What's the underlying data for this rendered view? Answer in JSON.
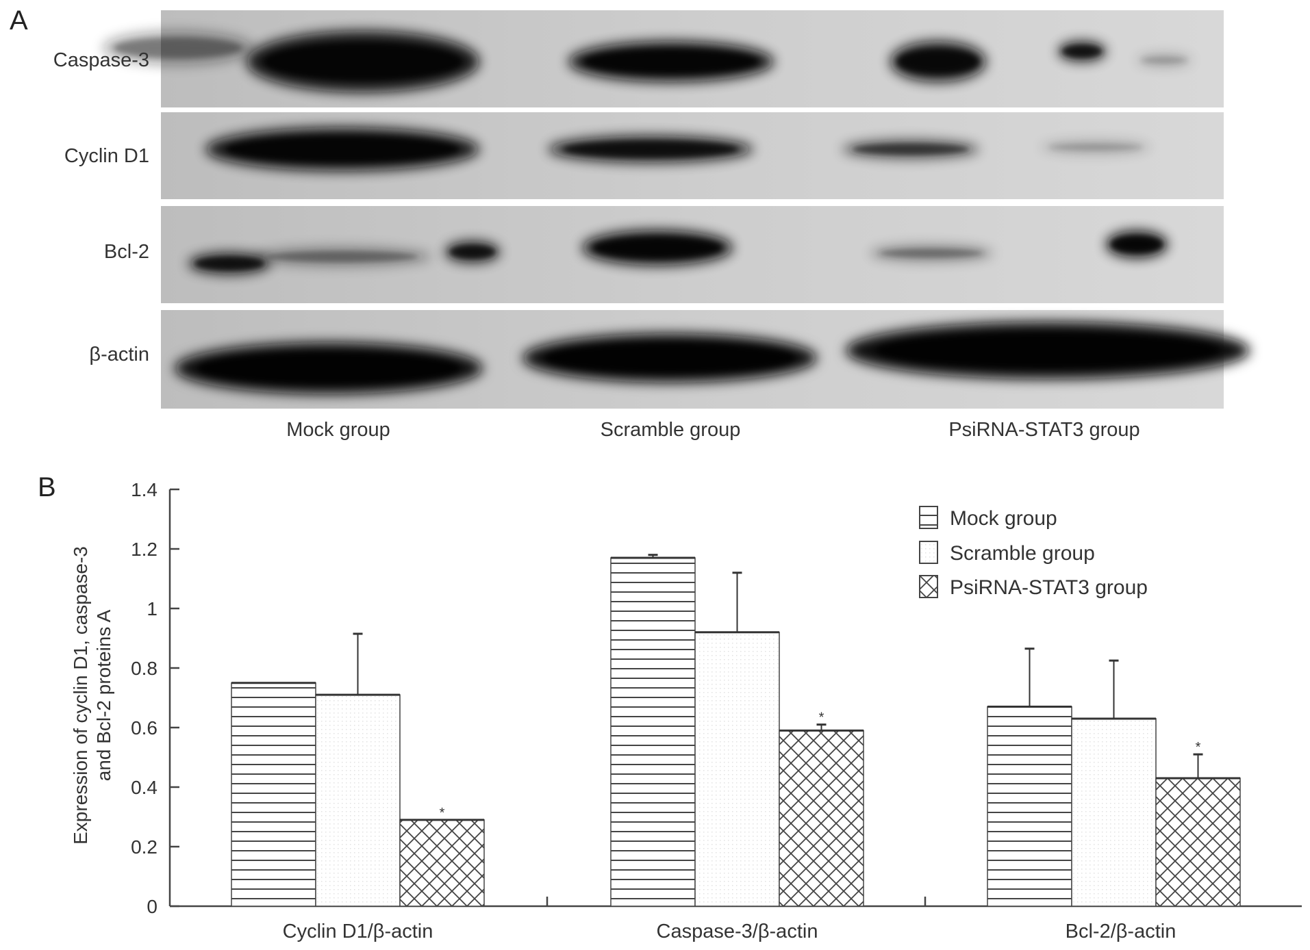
{
  "panel_a": {
    "letter": "A",
    "rows": [
      "Caspase-3",
      "Cyclin D1",
      "Bcl-2",
      "β-actin"
    ],
    "groups": [
      "Mock group",
      "Scramble group",
      "PsiRNA-STAT3 group"
    ]
  },
  "panel_b": {
    "letter": "B"
  },
  "chart_data": {
    "type": "bar",
    "categories": [
      "Cyclin D1/β-actin",
      "Caspase-3/β-actin",
      "Bcl-2/β-actin"
    ],
    "ylabel": [
      "Expression of cyclin D1, caspase-3",
      "and Bcl-2 proteins A"
    ],
    "ylim": [
      0,
      1.4
    ],
    "yticks": [
      "0",
      "0.2",
      "0.4",
      "0.6",
      "0.8",
      "1",
      "1.2",
      "1.4"
    ],
    "legend_position": "top-right",
    "series": [
      {
        "name": "Mock group",
        "pattern": "horizontal-lines",
        "values": [
          0.75,
          1.17,
          0.67
        ],
        "error_upper": [
          0.75,
          1.18,
          0.865
        ],
        "significant": [
          false,
          false,
          false
        ]
      },
      {
        "name": "Scramble group",
        "pattern": "light-dots",
        "values": [
          0.71,
          0.92,
          0.63
        ],
        "error_upper": [
          0.915,
          1.12,
          0.825
        ],
        "significant": [
          false,
          false,
          false
        ]
      },
      {
        "name": "PsiRNA-STAT3 group",
        "pattern": "crosshatch",
        "values": [
          0.29,
          0.59,
          0.43
        ],
        "error_upper": [
          0.29,
          0.61,
          0.51
        ],
        "significant": [
          true,
          true,
          true
        ]
      }
    ],
    "significance_marker": "*"
  }
}
